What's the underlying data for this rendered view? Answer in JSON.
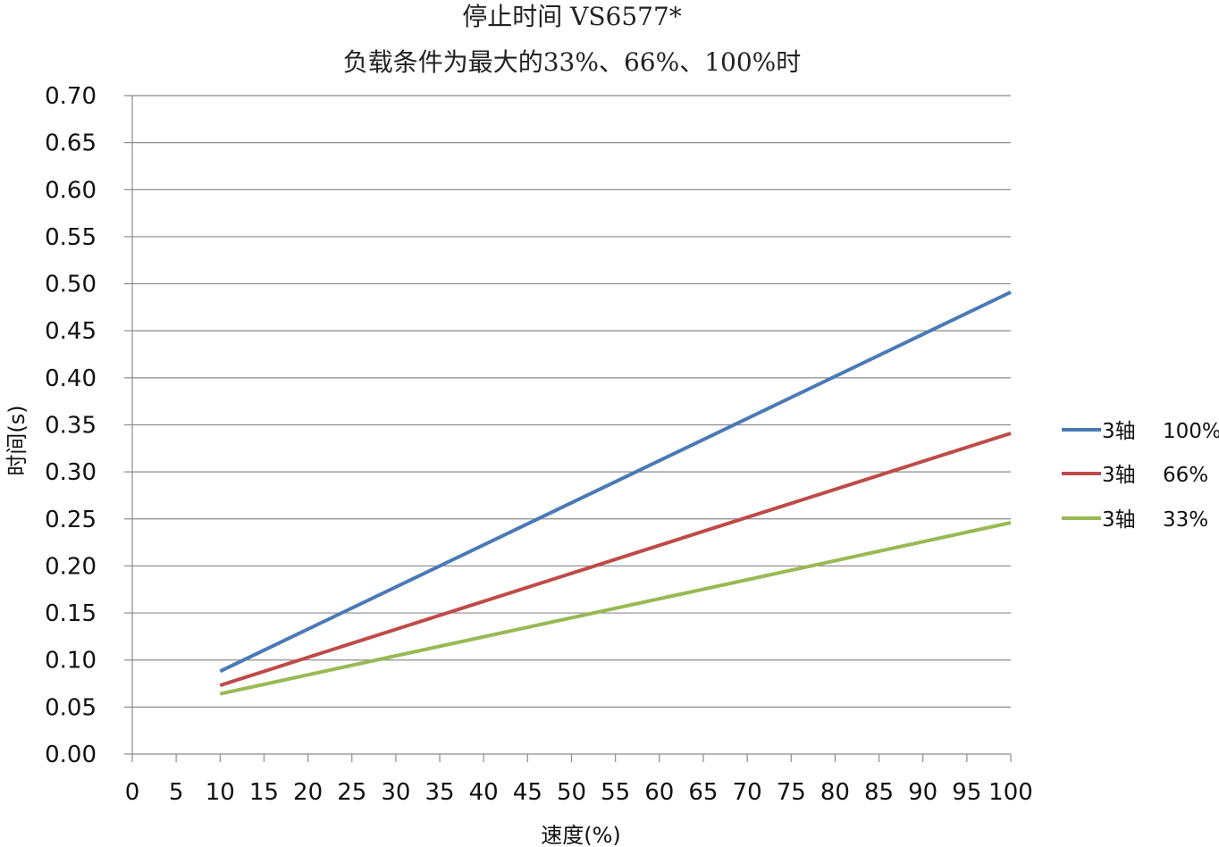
{
  "chart_data": {
    "type": "line",
    "title": "停止时间 VS6577*",
    "subtitle": "负载条件为最大的33%、66%、100%时",
    "xlabel": "速度(%)",
    "ylabel": "时间(s)",
    "xlim": [
      0,
      100
    ],
    "ylim": [
      0,
      0.7
    ],
    "x_ticks": [
      "0",
      "5",
      "10",
      "15",
      "20",
      "25",
      "30",
      "35",
      "40",
      "45",
      "50",
      "55",
      "60",
      "65",
      "70",
      "75",
      "80",
      "85",
      "90",
      "95",
      "100"
    ],
    "y_ticks": [
      "0.00",
      "0.05",
      "0.10",
      "0.15",
      "0.20",
      "0.25",
      "0.30",
      "0.35",
      "0.40",
      "0.45",
      "0.50",
      "0.55",
      "0.60",
      "0.65",
      "0.70"
    ],
    "grid": "horizontal",
    "legend_position": "right",
    "x": [
      10,
      100
    ],
    "series": [
      {
        "name": "3轴",
        "load": "100%",
        "color": "#4a7ab5",
        "values": [
          0.088,
          0.491
        ]
      },
      {
        "name": "3轴",
        "load": "66%",
        "color": "#be4b48",
        "values": [
          0.073,
          0.341
        ]
      },
      {
        "name": "3轴",
        "load": "33%",
        "color": "#98b954",
        "values": [
          0.064,
          0.246
        ]
      }
    ]
  }
}
